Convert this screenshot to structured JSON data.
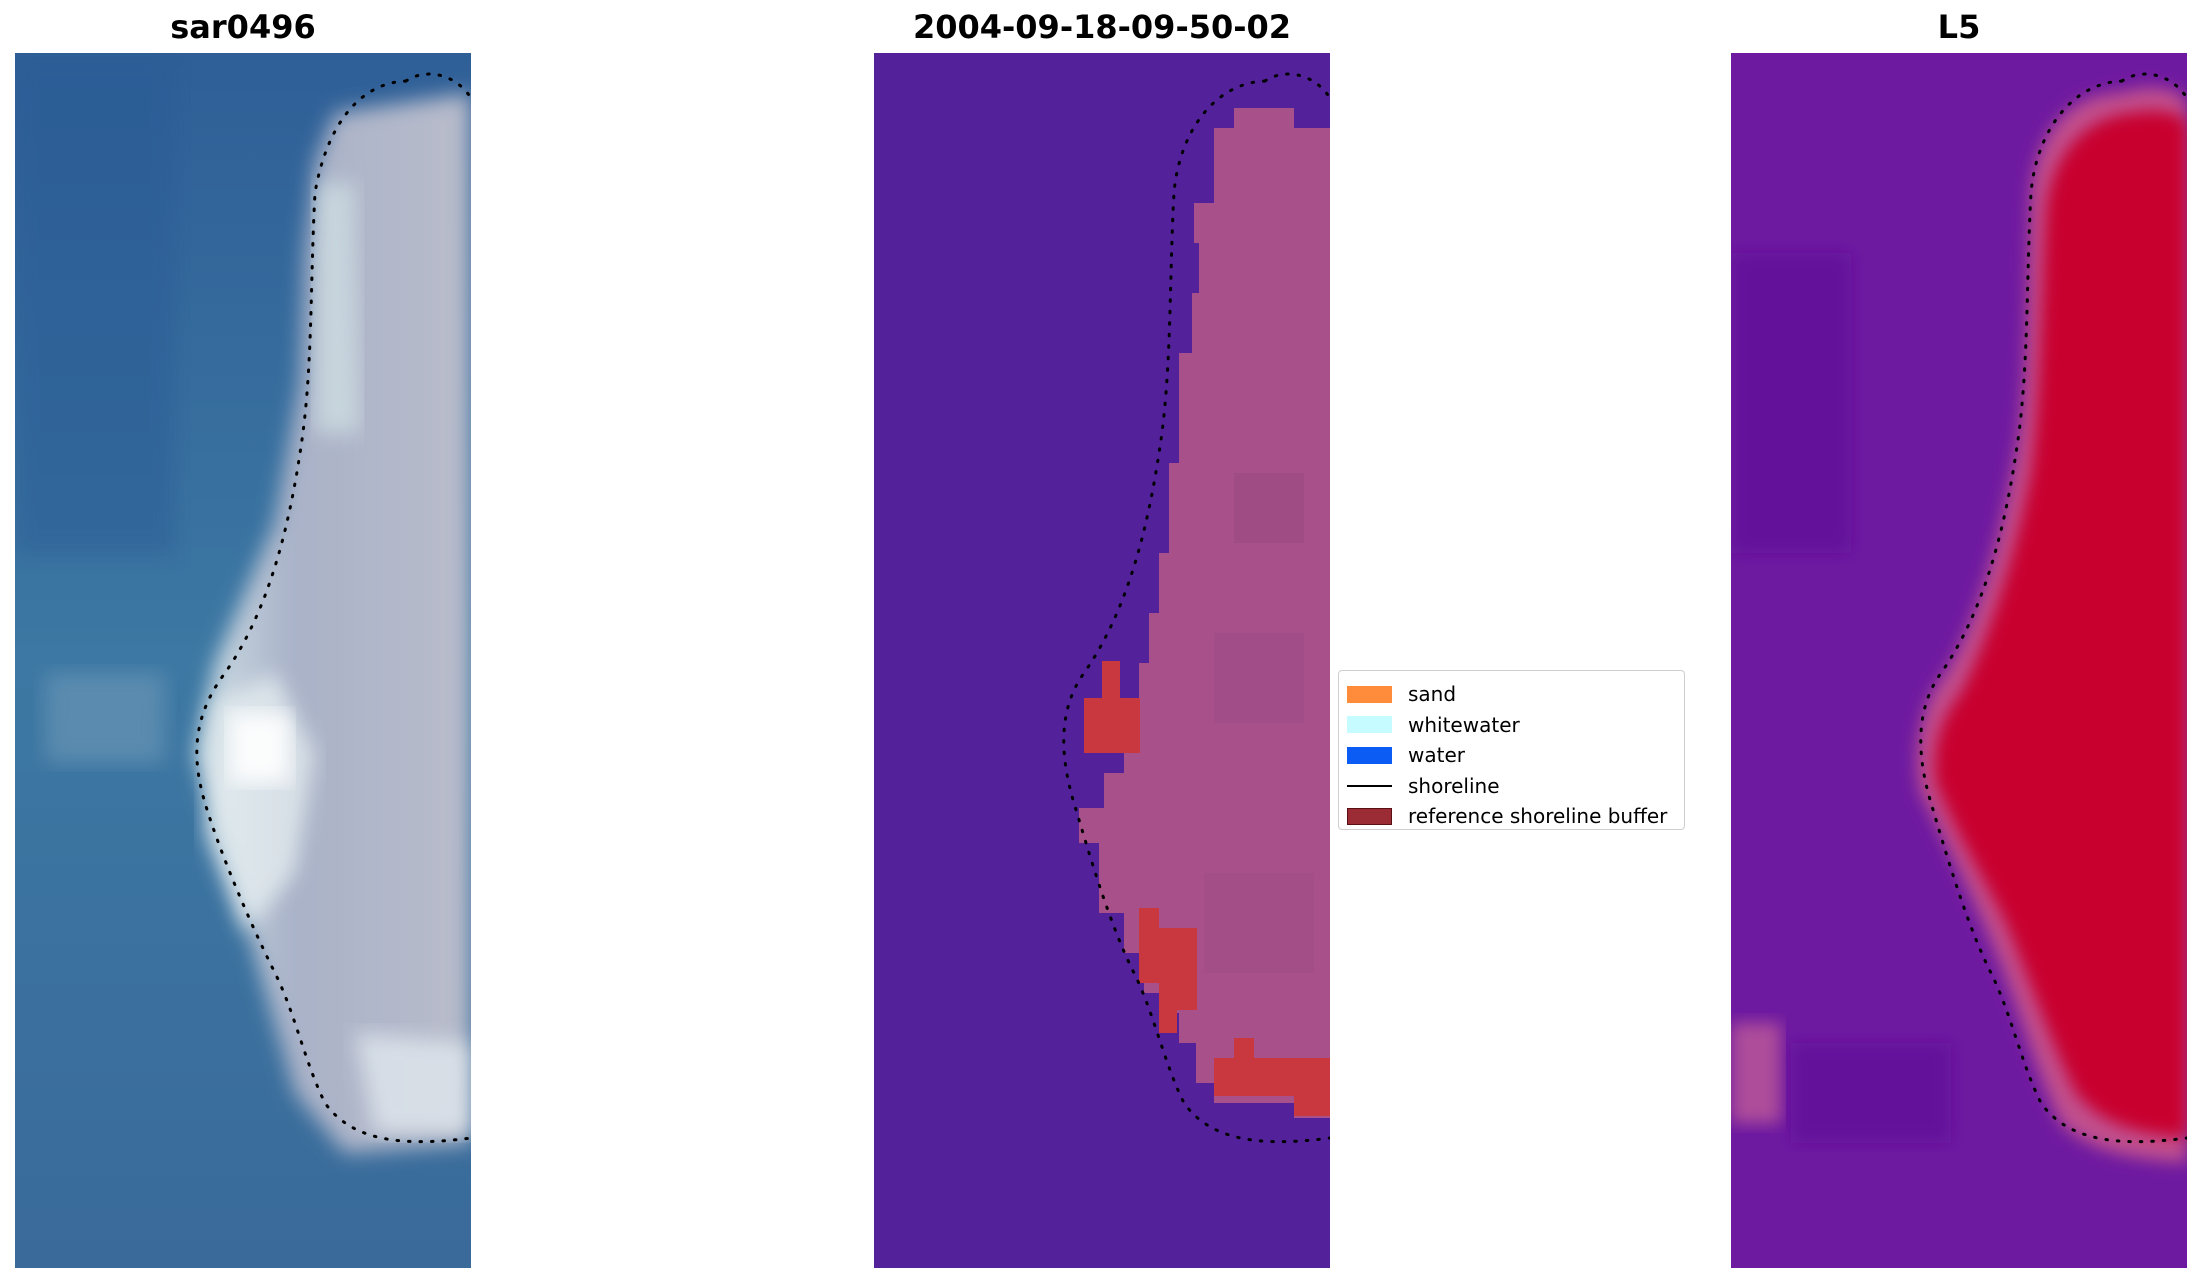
{
  "panels": [
    {
      "title": "sar0496"
    },
    {
      "title": "2004-09-18-09-50-02"
    },
    {
      "title": "L5"
    }
  ],
  "legend": {
    "items": [
      {
        "label": "sand",
        "color": "#ff8c3a",
        "kind": "patch"
      },
      {
        "label": "whitewater",
        "color": "#c6fbff",
        "kind": "patch"
      },
      {
        "label": "water",
        "color": "#0a5cf5",
        "kind": "patch"
      },
      {
        "label": "shoreline",
        "color": "#000000",
        "kind": "line"
      },
      {
        "label": "reference shoreline buffer",
        "color": "#9b2b35",
        "kind": "patch"
      }
    ]
  },
  "colors": {
    "rgb_water": "#3a6a9e",
    "rgb_land": "#b4b4c4",
    "class_water": "#53229a",
    "class_land": "#a8508a",
    "buffer_red": "#c8383e",
    "index_water": "#6c139e",
    "index_land": "#c8052f"
  }
}
